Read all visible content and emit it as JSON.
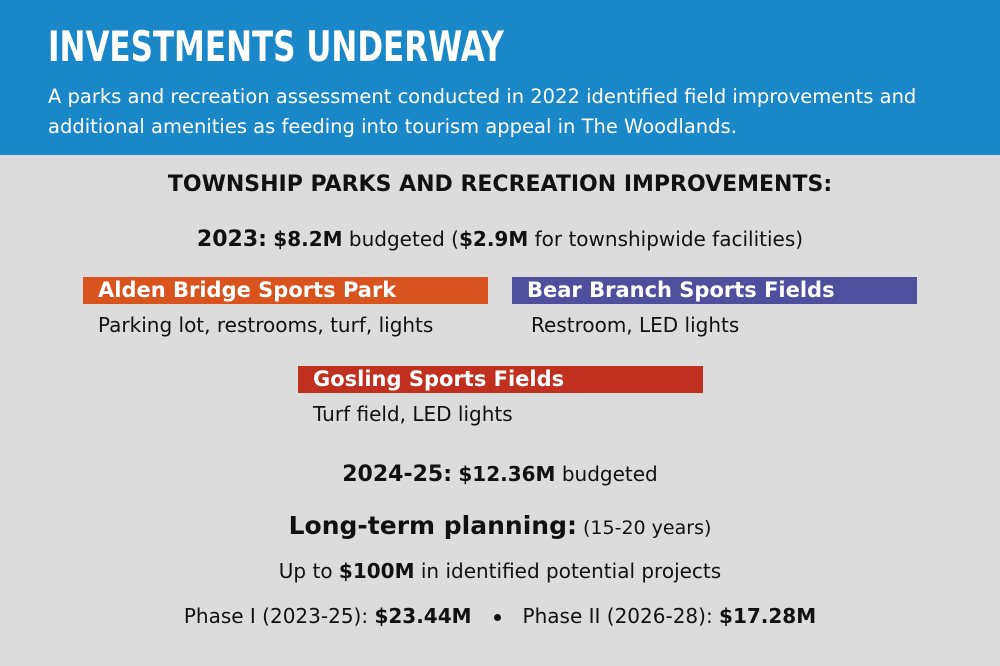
{
  "header": {
    "title": "INVESTMENTS UNDERWAY",
    "subtitle": "A parks and recreation assessment conducted in 2022 identified field improvements and additional amenities as feeding into tourism appeal in The Woodlands."
  },
  "section_title": "TOWNSHIP PARKS AND RECREATION IMPROVEMENTS:",
  "budget_2023": {
    "label": "2023:",
    "amount": "$8.2M",
    "text": "budgeted (",
    "facilities_amount": "$2.9M",
    "facilities_text": "for townshipwide facilities)"
  },
  "parks": [
    {
      "name": "Alden Bridge Sports Park",
      "details": "Parking lot, restrooms, turf, lights",
      "color": "#d9531e"
    },
    {
      "name": "Bear Branch Sports Fields",
      "details": "Restroom, LED lights",
      "color": "#4f4f9d"
    },
    {
      "name": "Gosling Sports Fields",
      "details": "Turf field, LED lights",
      "color": "#c1301f"
    }
  ],
  "budget_2024_25": {
    "label": "2024-25:",
    "amount": "$12.36M",
    "text": "budgeted"
  },
  "long_term": {
    "label": "Long-term planning:",
    "period": "(15-20 years)",
    "prefix": "Up to",
    "amount": "$100M",
    "suffix": "in identified potential projects",
    "phases": [
      {
        "label": "Phase I (2023-25):",
        "amount": "$23.44M"
      },
      {
        "label": "Phase II (2026-28):",
        "amount": "$17.28M"
      }
    ]
  }
}
